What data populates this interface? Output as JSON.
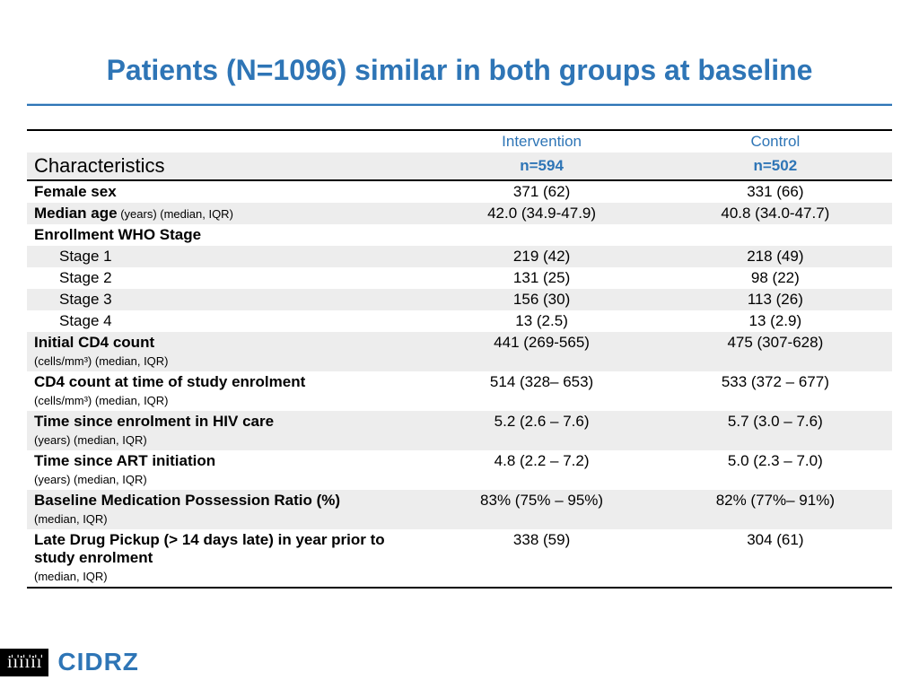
{
  "title": "Patients (N=1096) similar in both groups at baseline",
  "colors": {
    "accent": "#2e75b6",
    "shade": "#ededed",
    "text": "#000000",
    "background": "#ffffff"
  },
  "table": {
    "header": {
      "characteristics_label": "Characteristics",
      "intervention_label": "Intervention",
      "intervention_n": "n=594",
      "control_label": "Control",
      "control_n": "n=502"
    },
    "rows": [
      {
        "label": "Female sex",
        "bold": true,
        "int": "371 (62)",
        "ctl": "331 (66)",
        "shade": false
      },
      {
        "label": "Median age",
        "sub": " (years) (median, IQR)",
        "bold": true,
        "int": "42.0 (34.9-47.9)",
        "ctl": "40.8 (34.0-47.7)",
        "shade": true
      },
      {
        "label": "Enrollment WHO Stage",
        "bold": true,
        "int": "",
        "ctl": "",
        "shade": false
      },
      {
        "label": "Stage 1",
        "indent": true,
        "int": "219 (42)",
        "ctl": "218 (49)",
        "shade": true
      },
      {
        "label": "Stage 2",
        "indent": true,
        "int": "131 (25)",
        "ctl": "98 (22)",
        "shade": false
      },
      {
        "label": "Stage 3",
        "indent": true,
        "int": "156 (30)",
        "ctl": "113 (26)",
        "shade": true
      },
      {
        "label": "Stage 4",
        "indent": true,
        "int": "13 (2.5)",
        "ctl": "13 (2.9)",
        "shade": false
      },
      {
        "label": "Initial CD4 count",
        "subline": "(cells/mm³) (median, IQR)",
        "bold": true,
        "int": "441 (269-565)",
        "ctl": "475 (307-628)",
        "shade": true
      },
      {
        "label": "CD4 count at time of study enrolment",
        "subline": "(cells/mm³) (median, IQR)",
        "bold": true,
        "int": "514 (328– 653)",
        "ctl": "533 (372 – 677)",
        "shade": false
      },
      {
        "label": "Time since enrolment in HIV care",
        "subline": "(years) (median, IQR)",
        "bold": true,
        "int": "5.2 (2.6 – 7.6)",
        "ctl": "5.7 (3.0 – 7.6)",
        "shade": true
      },
      {
        "label": "Time since ART initiation",
        "subline": "(years) (median, IQR)",
        "bold": true,
        "int": "4.8 (2.2 – 7.2)",
        "ctl": "5.0 (2.3 – 7.0)",
        "shade": false
      },
      {
        "label": "Baseline Medication Possession Ratio (%)",
        "subline": "(median, IQR)",
        "bold": true,
        "int": "83% (75% – 95%)",
        "ctl": "82% (77%– 91%)",
        "shade": true
      },
      {
        "label": "Late Drug Pickup (> 14 days late) in year prior to study enrolment",
        "subline": "(median, IQR)",
        "bold": true,
        "int": "338 (59)",
        "ctl": "304 (61)",
        "shade": false,
        "last": true
      }
    ]
  },
  "logo": {
    "text": "CIDRZ",
    "glyphs": "i̇ i̇ i̇ i̇ i̇ i̇"
  }
}
